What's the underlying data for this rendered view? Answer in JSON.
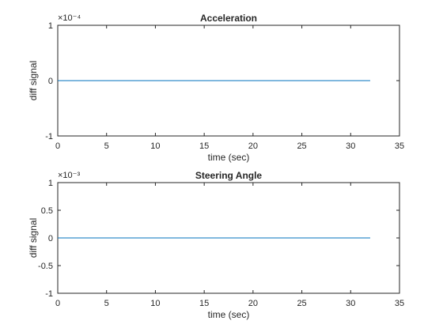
{
  "chart_data": [
    {
      "type": "line",
      "title": "Acceleration",
      "xlabel": "time (sec)",
      "ylabel": "diff signal",
      "exponent_label": "×10⁻⁴",
      "xlim": [
        0,
        35
      ],
      "ylim": [
        -1,
        1
      ],
      "xticks": [
        0,
        5,
        10,
        15,
        20,
        25,
        30,
        35
      ],
      "xtick_labels": [
        "0",
        "5",
        "10",
        "15",
        "20",
        "25",
        "30",
        "35"
      ],
      "yticks": [
        -1,
        0,
        1
      ],
      "ytick_labels": [
        "-1",
        "0",
        "1"
      ],
      "grid": false,
      "line_color": "#0072bd",
      "series": [
        {
          "x": [
            0,
            32
          ],
          "y": [
            0,
            0
          ]
        }
      ]
    },
    {
      "type": "line",
      "title": "Steering Angle",
      "xlabel": "time (sec)",
      "ylabel": "diff signal",
      "exponent_label": "×10⁻³",
      "xlim": [
        0,
        35
      ],
      "ylim": [
        -1,
        1
      ],
      "xticks": [
        0,
        5,
        10,
        15,
        20,
        25,
        30,
        35
      ],
      "xtick_labels": [
        "0",
        "5",
        "10",
        "15",
        "20",
        "25",
        "30",
        "35"
      ],
      "yticks": [
        -1,
        -0.5,
        0,
        0.5,
        1
      ],
      "ytick_labels": [
        "-1",
        "-0.5",
        "0",
        "0.5",
        "1"
      ],
      "grid": false,
      "line_color": "#0072bd",
      "series": [
        {
          "x": [
            0,
            32
          ],
          "y": [
            0,
            0
          ]
        }
      ]
    }
  ]
}
